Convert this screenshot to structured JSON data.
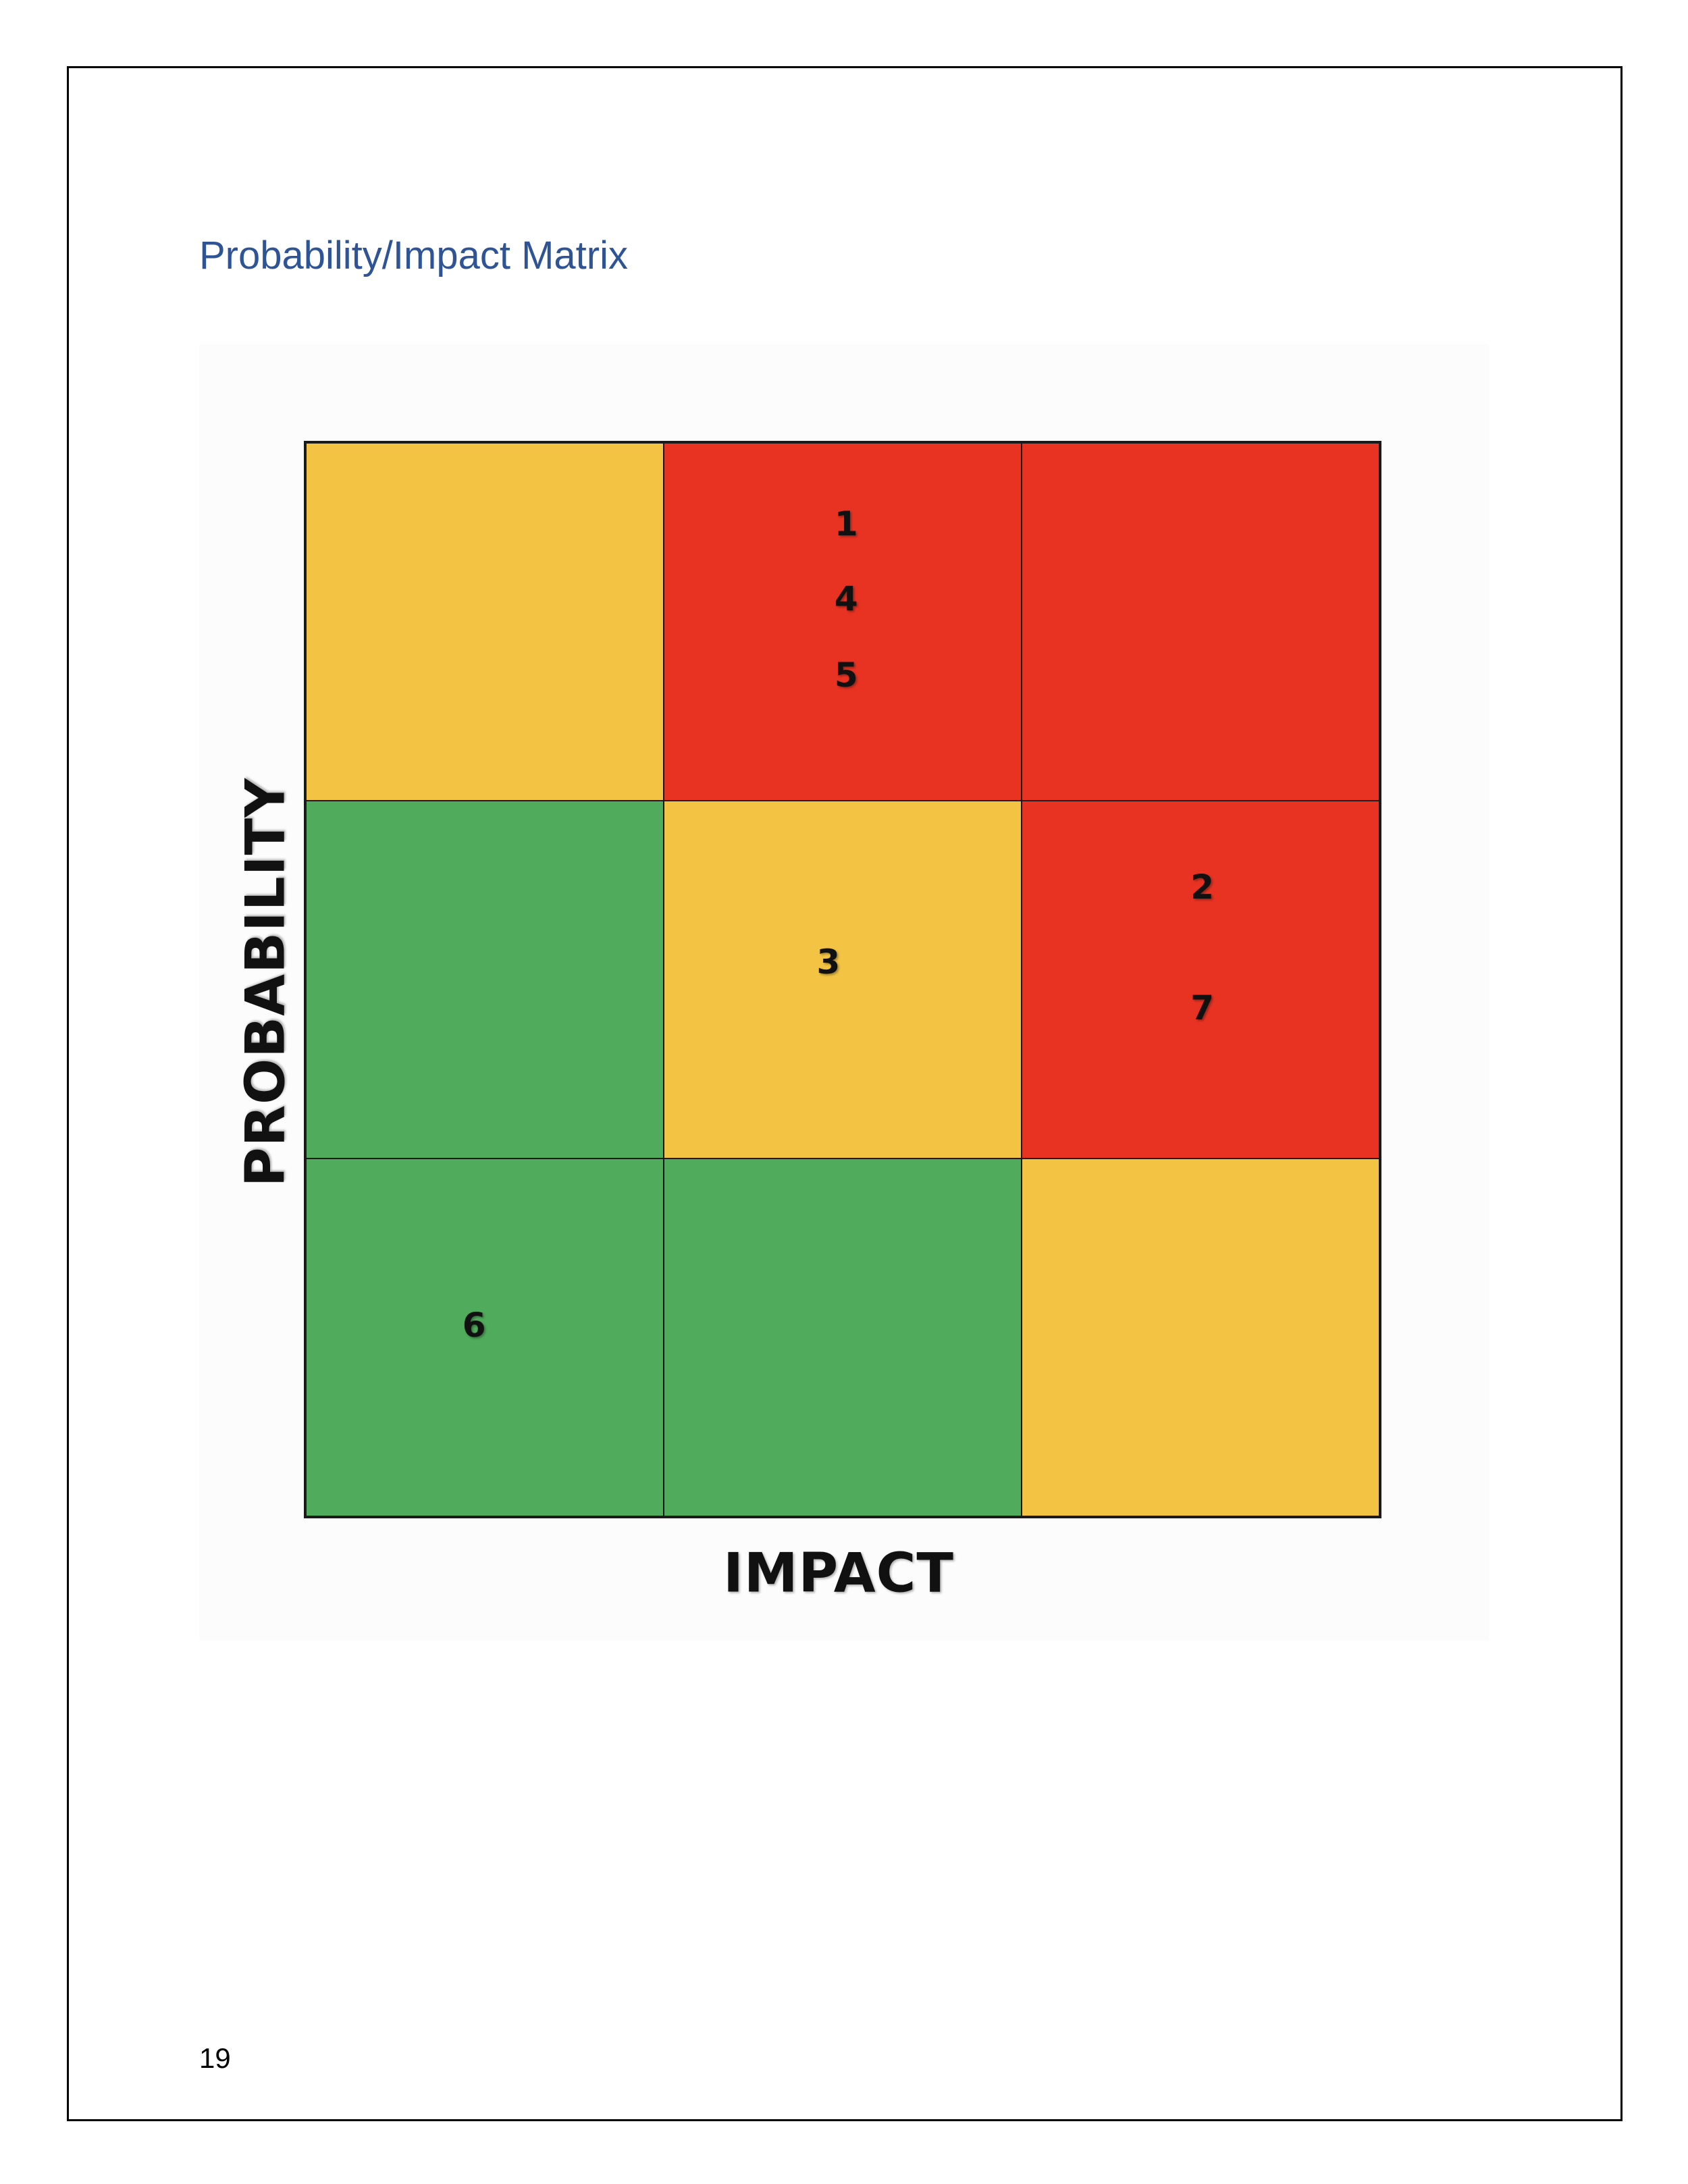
{
  "document": {
    "heading": "Probability/Impact Matrix",
    "page_number": "19"
  },
  "matrix": {
    "x_axis_label": "IMPACT",
    "y_axis_label": "PROBABILITY",
    "colors": {
      "yellow": "#f3c343",
      "red": "#e83323",
      "green": "#50ac5c"
    },
    "rows": [
      {
        "cells": [
          {
            "color": "yellow",
            "risks": []
          },
          {
            "color": "red",
            "risks": [
              "1",
              "4",
              "5"
            ]
          },
          {
            "color": "red",
            "risks": []
          }
        ]
      },
      {
        "cells": [
          {
            "color": "green",
            "risks": []
          },
          {
            "color": "yellow",
            "risks": [
              "3"
            ]
          },
          {
            "color": "red",
            "risks": [
              "2",
              "7"
            ]
          }
        ]
      },
      {
        "cells": [
          {
            "color": "green",
            "risks": [
              "6"
            ]
          },
          {
            "color": "green",
            "risks": []
          },
          {
            "color": "yellow",
            "risks": []
          }
        ]
      }
    ]
  }
}
